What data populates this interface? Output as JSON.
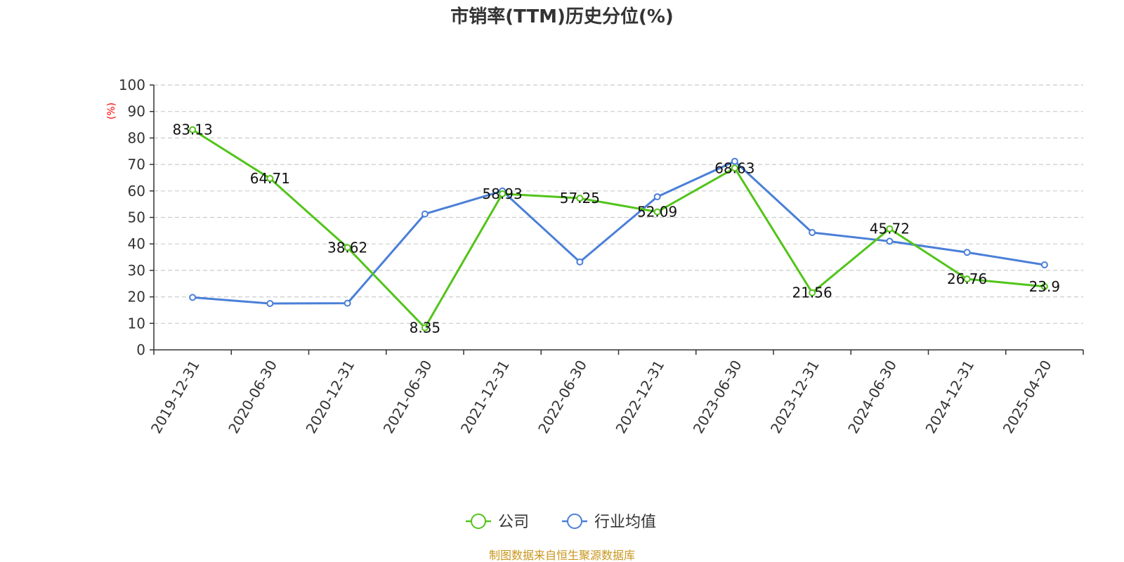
{
  "chart_data": {
    "type": "line",
    "title": "市销率(TTM)历史分位(%)",
    "ylabel": "(%)",
    "xlabel": "",
    "ylim": [
      0,
      100
    ],
    "yticks": [
      0,
      10,
      20,
      30,
      40,
      50,
      60,
      70,
      80,
      90,
      100
    ],
    "grid": true,
    "legend_position": "bottom",
    "categories": [
      "2019-12-31",
      "2020-06-30",
      "2020-12-31",
      "2021-06-30",
      "2021-12-31",
      "2022-06-30",
      "2022-12-31",
      "2023-06-30",
      "2023-12-31",
      "2024-06-30",
      "2024-12-31",
      "2025-04-20"
    ],
    "series": [
      {
        "name": "公司",
        "color": "#52c41a",
        "values": [
          83.13,
          64.71,
          38.62,
          8.35,
          58.93,
          57.25,
          52.09,
          68.63,
          21.56,
          45.72,
          26.76,
          23.9
        ],
        "labels": [
          "83.13",
          "64.71",
          "38.62",
          "8.35",
          "58.93",
          "57.25",
          "52.09",
          "68.63",
          "21.56",
          "45.72",
          "26.76",
          "23.9"
        ]
      },
      {
        "name": "行业均值",
        "color": "#4a7fd8",
        "values": [
          19.8,
          17.5,
          17.6,
          51.3,
          60.0,
          33.2,
          57.8,
          71.2,
          44.3,
          41.0,
          36.8,
          32.1
        ]
      }
    ],
    "source": "制图数据来自恒生聚源数据库"
  }
}
